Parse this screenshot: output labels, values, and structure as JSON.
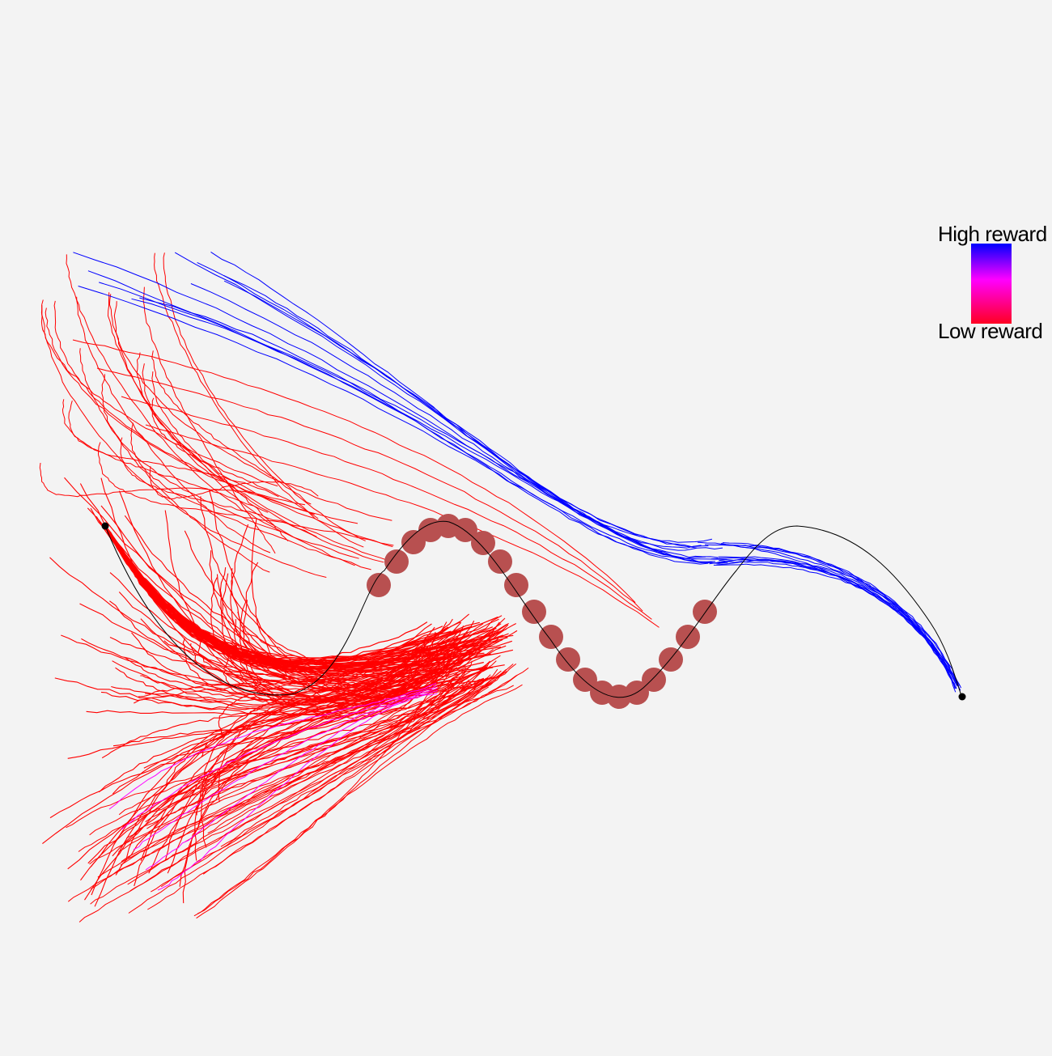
{
  "legend": {
    "high_label": "High reward",
    "low_label": "Low reward",
    "high_color": "#0000ff",
    "mid_color": "#ff00ff",
    "low_color": "#ff0022"
  },
  "colors": {
    "background": "#f3f3f3",
    "obstacle": "#b85050",
    "reference_path": "#000000",
    "endpoint": "#000000"
  }
}
